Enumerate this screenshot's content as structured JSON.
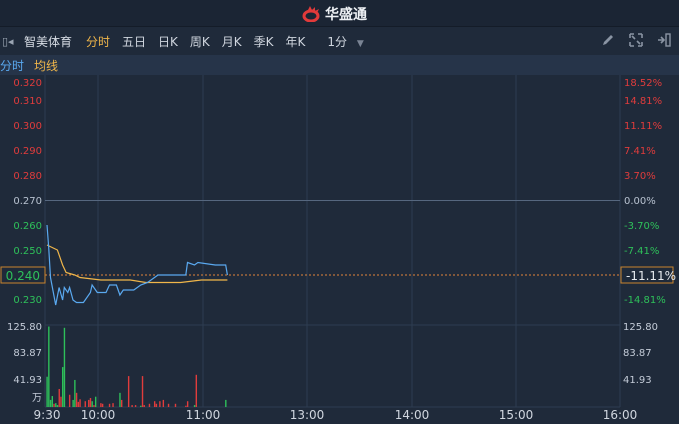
{
  "brand": {
    "name": "华盛通",
    "color": "#e23a3a"
  },
  "toolbar": {
    "stock_name": "智美体育",
    "tabs": [
      {
        "label": "分时",
        "active": true
      },
      {
        "label": "五日"
      },
      {
        "label": "日K"
      },
      {
        "label": "周K"
      },
      {
        "label": "月K"
      },
      {
        "label": "季K"
      },
      {
        "label": "年K"
      }
    ],
    "interval": "1分",
    "icons": [
      "pencil-icon",
      "fullscreen-icon",
      "collapse-panel-icon"
    ]
  },
  "legend": {
    "price_label": "分时",
    "avg_label": "均线"
  },
  "colors": {
    "up": "#e03c3c",
    "down": "#2ec05a",
    "price_line": "#5aa9f0",
    "avg_line": "#f0b64a",
    "neutral": "#b8c2d0"
  },
  "chart_data": {
    "type": "line",
    "prev_close": 0.27,
    "current_price": "0.240",
    "current_change": "-11.11%",
    "price_ticks": [
      {
        "price": "0.320",
        "pct": "18.52%",
        "dir": "up"
      },
      {
        "price": "0.310",
        "pct": "14.81%",
        "dir": "up"
      },
      {
        "price": "0.300",
        "pct": "11.11%",
        "dir": "up"
      },
      {
        "price": "0.290",
        "pct": "7.41%",
        "dir": "up"
      },
      {
        "price": "0.280",
        "pct": "3.70%",
        "dir": "up"
      },
      {
        "price": "0.270",
        "pct": "0.00%",
        "dir": "flat"
      },
      {
        "price": "0.260",
        "pct": "-3.70%",
        "dir": "down"
      },
      {
        "price": "0.250",
        "pct": "-7.41%",
        "dir": "down"
      },
      {
        "price": "0.230",
        "pct": "-14.81%",
        "dir": "down"
      }
    ],
    "volume_ticks": [
      "125.80",
      "83.87",
      "41.93"
    ],
    "volume_unit": "万",
    "volume_max": 125.8,
    "time_ticks": [
      "9:30",
      "10:00",
      "11:00",
      "13:00",
      "14:00",
      "15:00",
      "16:00"
    ],
    "price_series": [
      [
        "9:30",
        0.26
      ],
      [
        "9:31",
        0.251
      ],
      [
        "9:32",
        0.239
      ],
      [
        "9:35",
        0.228
      ],
      [
        "9:37",
        0.235
      ],
      [
        "9:39",
        0.23
      ],
      [
        "9:40",
        0.235
      ],
      [
        "9:42",
        0.233
      ],
      [
        "9:43",
        0.235
      ],
      [
        "9:45",
        0.23
      ],
      [
        "9:47",
        0.229
      ],
      [
        "9:51",
        0.229
      ],
      [
        "9:53",
        0.231
      ],
      [
        "9:55",
        0.233
      ],
      [
        "9:56",
        0.236
      ],
      [
        "9:59",
        0.233
      ],
      [
        "10:04",
        0.233
      ],
      [
        "10:06",
        0.236
      ],
      [
        "10:10",
        0.236
      ],
      [
        "10:12",
        0.232
      ],
      [
        "10:14",
        0.234
      ],
      [
        "10:20",
        0.234
      ],
      [
        "10:24",
        0.236
      ],
      [
        "10:28",
        0.237
      ],
      [
        "10:34",
        0.24
      ],
      [
        "10:50",
        0.24
      ],
      [
        "10:51",
        0.245
      ],
      [
        "10:55",
        0.244
      ],
      [
        "10:57",
        0.245
      ],
      [
        "11:07",
        0.244
      ],
      [
        "11:13",
        0.244
      ],
      [
        "11:14",
        0.24
      ]
    ],
    "avg_series": [
      [
        "9:30",
        0.252
      ],
      [
        "9:36",
        0.25
      ],
      [
        "9:39",
        0.244
      ],
      [
        "9:41",
        0.241
      ],
      [
        "9:46",
        0.24
      ],
      [
        "9:49",
        0.239
      ],
      [
        "10:01",
        0.238
      ],
      [
        "10:18",
        0.238
      ],
      [
        "10:27",
        0.237
      ],
      [
        "10:47",
        0.237
      ],
      [
        "10:59",
        0.238
      ],
      [
        "11:14",
        0.238
      ]
    ],
    "volume_series": [
      [
        "9:30",
        47,
        "down"
      ],
      [
        "9:31",
        125,
        "down"
      ],
      [
        "9:32",
        11,
        "down"
      ],
      [
        "9:33",
        17,
        "down"
      ],
      [
        "9:34",
        5,
        "up"
      ],
      [
        "9:35",
        6,
        "down"
      ],
      [
        "9:36",
        3,
        "down"
      ],
      [
        "9:37",
        28,
        "up"
      ],
      [
        "9:38",
        16,
        "up"
      ],
      [
        "9:39",
        62,
        "down"
      ],
      [
        "9:40",
        123,
        "down"
      ],
      [
        "9:43",
        19,
        "up"
      ],
      [
        "9:45",
        11,
        "down"
      ],
      [
        "9:46",
        42,
        "down"
      ],
      [
        "9:47",
        22,
        "up"
      ],
      [
        "9:48",
        8,
        "up"
      ],
      [
        "9:49",
        12,
        "up"
      ],
      [
        "9:52",
        9,
        "up"
      ],
      [
        "9:54",
        11,
        "up"
      ],
      [
        "9:55",
        14,
        "up"
      ],
      [
        "9:56",
        9,
        "down"
      ],
      [
        "9:57",
        3,
        "up"
      ],
      [
        "9:58",
        16,
        "down"
      ],
      [
        "10:01",
        6,
        "up"
      ],
      [
        "10:02",
        5,
        "up"
      ],
      [
        "10:06",
        5,
        "up"
      ],
      [
        "10:08",
        6,
        "up"
      ],
      [
        "10:12",
        22,
        "down"
      ],
      [
        "10:13",
        11,
        "up"
      ],
      [
        "10:17",
        48,
        "up"
      ],
      [
        "10:19",
        3,
        "up"
      ],
      [
        "10:21",
        3,
        "up"
      ],
      [
        "10:24",
        2,
        "down"
      ],
      [
        "10:25",
        48,
        "up"
      ],
      [
        "10:26",
        3,
        "up"
      ],
      [
        "10:29",
        5,
        "up"
      ],
      [
        "10:32",
        9,
        "up"
      ],
      [
        "10:33",
        5,
        "up"
      ],
      [
        "10:35",
        9,
        "up"
      ],
      [
        "10:37",
        11,
        "up"
      ],
      [
        "10:40",
        5,
        "up"
      ],
      [
        "10:44",
        5,
        "up"
      ],
      [
        "10:50",
        2,
        "up"
      ],
      [
        "10:51",
        9,
        "up"
      ],
      [
        "10:55",
        3,
        "down"
      ],
      [
        "10:56",
        50,
        "up"
      ],
      [
        "11:13",
        11,
        "down"
      ]
    ]
  }
}
